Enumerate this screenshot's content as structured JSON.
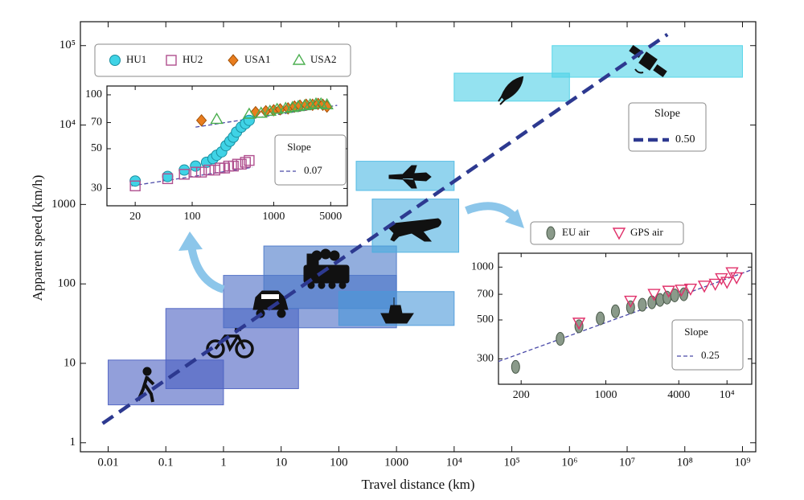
{
  "chart_data": [
    {
      "type": "range",
      "xlabel": "Travel distance (km)",
      "ylabel": "Apparent speed (km/h)",
      "xscale": "log",
      "yscale": "log",
      "xlim": [
        0.0033,
        1700000000.0
      ],
      "ylim": [
        0.77,
        200000.0
      ],
      "xticks": [
        0.01,
        0.1,
        1,
        10,
        100,
        1000,
        {
          "value": 10000,
          "label": "10⁴"
        },
        {
          "value": 100000,
          "label": "10⁵"
        },
        {
          "value": 1000000,
          "label": "10⁶"
        },
        {
          "value": 10000000,
          "label": "10⁷"
        },
        {
          "value": 100000000,
          "label": "10⁸"
        },
        {
          "value": 1000000000,
          "label": "10⁹"
        }
      ],
      "yticks": [
        1,
        10,
        100,
        1000,
        {
          "value": 10000,
          "label": "10⁴"
        },
        {
          "value": 100000,
          "label": "10⁵"
        }
      ],
      "ranges": [
        {
          "x": [
            0.01,
            1
          ],
          "values": [
            3,
            11
          ],
          "color": "#4a5fc1"
        },
        {
          "x": [
            0.1,
            20
          ],
          "values": [
            4.8,
            49
          ],
          "color": "#4a5fc1"
        },
        {
          "x": [
            1,
            1000
          ],
          "values": [
            28,
            128
          ],
          "color": "#4a6bc4"
        },
        {
          "x": [
            5,
            1000
          ],
          "values": [
            49,
            300
          ],
          "color": "#4a78c8"
        },
        {
          "x": [
            100,
            10000
          ],
          "values": [
            30,
            80
          ],
          "color": "#4a98d8"
        },
        {
          "x": [
            380,
            12000
          ],
          "values": [
            250,
            1170
          ],
          "color": "#4aaedf"
        },
        {
          "x": [
            200,
            10000
          ],
          "values": [
            1500,
            3500
          ],
          "color": "#4ab8e3"
        },
        {
          "x": [
            10000,
            1000000
          ],
          "values": [
            20000,
            45000
          ],
          "color": "#4ccfe6"
        },
        {
          "x": [
            500000,
            1000000000
          ],
          "values": [
            40000,
            100000
          ],
          "color": "#4ed3e8"
        }
      ],
      "fit": {
        "x": [
          0.008,
          50000000
        ],
        "y0": 1.75,
        "slope": {
          "value": 0.5,
          "label": "0.50"
        },
        "color": "#2d3990",
        "legend_title": "Slope"
      }
    },
    {
      "type": "scatter",
      "xscale": "log",
      "yscale": "log",
      "xlim": [
        9,
        8000
      ],
      "ylim": [
        24,
        112
      ],
      "xticks": [
        20,
        100,
        1000,
        5000
      ],
      "yticks": [
        30,
        50,
        70,
        100
      ],
      "series": [
        {
          "name": "HU1",
          "color": "#3fd3e6",
          "marker": "circle",
          "x": [
            20,
            50,
            80,
            110,
            150,
            180,
            200,
            230,
            260,
            290,
            320,
            350,
            400,
            450,
            500
          ],
          "values": [
            33,
            35,
            38,
            40,
            42,
            44,
            46,
            48,
            52,
            55,
            58,
            62,
            66,
            69,
            72
          ]
        },
        {
          "name": "HU2",
          "color": "#b0508f",
          "marker": "square",
          "x": [
            20,
            50,
            80,
            110,
            130,
            160,
            190,
            220,
            250,
            280,
            320,
            360,
            400,
            450,
            500
          ],
          "values": [
            31,
            34,
            36,
            37,
            37,
            38,
            38,
            39,
            39,
            40,
            40,
            41,
            41,
            42,
            43
          ]
        },
        {
          "name": "USA1",
          "color": "#e87d1e",
          "marker": "diamond",
          "x": [
            130,
            600,
            800,
            1000,
            1200,
            1500,
            1800,
            2100,
            2500,
            3000,
            3500,
            4000,
            4500
          ],
          "values": [
            72,
            80,
            81,
            82,
            83,
            84,
            86,
            87,
            88,
            88,
            89,
            88,
            86
          ]
        },
        {
          "name": "USA2",
          "color": "#4caf50",
          "marker": "triangle",
          "x": [
            200,
            500,
            700,
            900,
            1100,
            1400,
            1700,
            2000,
            2400,
            2800,
            3300,
            3800,
            4500
          ],
          "values": [
            73,
            78,
            79,
            81,
            83,
            84,
            85,
            86,
            87,
            88,
            89,
            89,
            88
          ]
        }
      ],
      "fits": [
        {
          "x": [
            18,
            550
          ],
          "y0": 31
        },
        {
          "x": [
            110,
            6000
          ],
          "y0": 66
        }
      ],
      "slope": 0.07,
      "fit_color": "#4a4aa8",
      "legend_title": "Slope"
    },
    {
      "type": "scatter",
      "xscale": "log",
      "yscale": "log",
      "xlim": [
        130,
        16000
      ],
      "ylim": [
        215,
        1200
      ],
      "xticks": [
        200,
        1000,
        4000,
        {
          "value": 10000,
          "label": "10⁴"
        }
      ],
      "yticks": [
        300,
        500,
        700,
        1000
      ],
      "series": [
        {
          "name": "EU air",
          "color": "#8a9a8a",
          "marker": "ellipse",
          "x": [
            180,
            420,
            600,
            900,
            1200,
            1600,
            2000,
            2400,
            2800,
            3200,
            3700,
            4400
          ],
          "values": [
            270,
            390,
            460,
            510,
            560,
            590,
            610,
            630,
            650,
            670,
            690,
            700
          ]
        },
        {
          "name": "GPS air",
          "color": "#e0306a",
          "marker": "triangle-down",
          "x": [
            600,
            1600,
            2500,
            3300,
            4200,
            5000,
            6500,
            8000,
            9000,
            10000,
            11000,
            12000
          ],
          "values": [
            480,
            640,
            700,
            730,
            740,
            750,
            780,
            800,
            860,
            820,
            930,
            870
          ]
        }
      ],
      "fits": [
        {
          "x": [
            130,
            16000
          ],
          "y0": 290
        }
      ],
      "slope": 0.25,
      "fit_color": "#4a4aa8",
      "legend_title": "Slope"
    }
  ]
}
